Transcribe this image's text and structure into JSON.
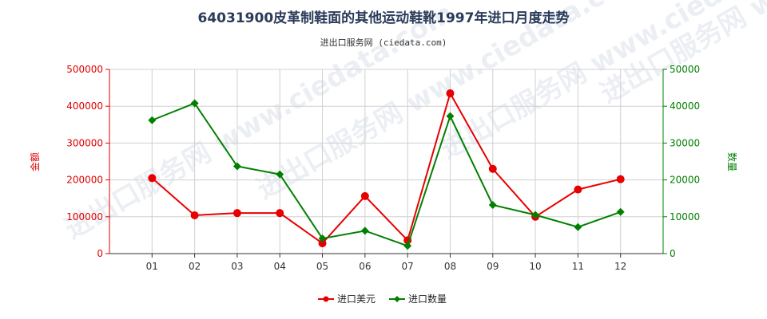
{
  "chart_data": {
    "type": "line",
    "title": "64031900皮革制鞋面的其他运动鞋靴1997年进口月度走势",
    "subtitle": "进出口服务网 (ciedata.com)",
    "watermark": "进出口服务网 www.ciedata.com",
    "categories": [
      "01",
      "02",
      "03",
      "04",
      "05",
      "06",
      "07",
      "08",
      "09",
      "10",
      "11",
      "12"
    ],
    "y_left": {
      "label": "金额",
      "ylim": [
        0,
        500000
      ],
      "ticks": [
        "0",
        "100000",
        "200000",
        "300000",
        "400000",
        "500000"
      ],
      "color": "#e00000"
    },
    "y_right": {
      "label": "数量",
      "ylim": [
        0,
        50000
      ],
      "ticks": [
        "0",
        "10000",
        "20000",
        "30000",
        "40000",
        "50000"
      ],
      "color": "#008000"
    },
    "series": [
      {
        "name": "进口美元",
        "axis": "left",
        "color": "#e80000",
        "marker": "circle",
        "values": [
          205000,
          104000,
          110000,
          110000,
          28000,
          156000,
          36000,
          435000,
          230000,
          100000,
          174000,
          202000
        ]
      },
      {
        "name": "进口数量",
        "axis": "right",
        "color": "#008000",
        "marker": "diamond",
        "values": [
          36200,
          40800,
          23700,
          21500,
          4100,
          6200,
          2100,
          37300,
          13200,
          10500,
          7200,
          11300
        ]
      }
    ],
    "grid": true,
    "legend": "bottom-center"
  }
}
